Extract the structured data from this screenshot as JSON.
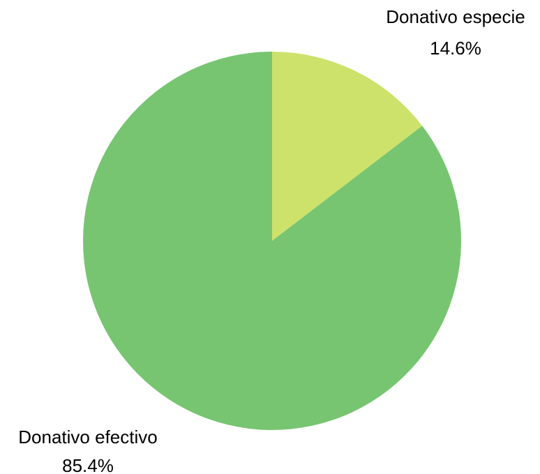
{
  "chart_data": {
    "type": "pie",
    "start_angle": "12 o'clock",
    "direction": "clockwise",
    "slices": [
      {
        "label": "Donativo especie",
        "percent_label": "14.6%",
        "value": 14.6,
        "color": "#cde26a"
      },
      {
        "label": "Donativo efectivo",
        "percent_label": "85.4%",
        "value": 85.4,
        "color": "#77c571"
      }
    ]
  }
}
